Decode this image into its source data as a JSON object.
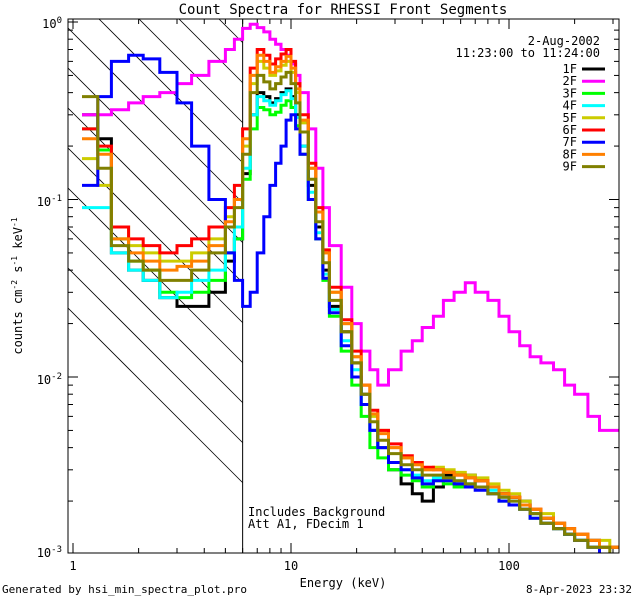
{
  "chart_data": {
    "type": "line",
    "title": "Count Spectra for RHESSI Front Segments",
    "xlabel": "Energy (keV)",
    "ylabel": "counts cm-2 s-1 keV-1",
    "ylabel_parts": {
      "a": "counts cm",
      "b": "-2",
      "c": " s",
      "d": "-1",
      "e": " keV",
      "f": "-1"
    },
    "xscale": "log",
    "yscale": "log",
    "xlim": [
      1,
      300
    ],
    "ylim": [
      0.001,
      1
    ],
    "xticks": [
      {
        "v": 1,
        "label": "1"
      },
      {
        "v": 10,
        "label": "10"
      },
      {
        "v": 100,
        "label": "100"
      }
    ],
    "yticks": [
      {
        "v": 1,
        "base": "10",
        "exp": "0"
      },
      {
        "v": 0.1,
        "base": "10",
        "exp": "-1"
      },
      {
        "v": 0.01,
        "base": "10",
        "exp": "-2"
      },
      {
        "v": 0.001,
        "base": "10",
        "exp": "-3"
      }
    ],
    "date": "2-Aug-2002",
    "time_range": "11:23:00 to 11:24:00",
    "annotation_lines": [
      "Includes Background",
      "Att A1, FDecim 1"
    ],
    "threshold_energy": 6,
    "hatched_region": [
      1,
      6
    ],
    "series": [
      {
        "name": "1F",
        "color": "#000000",
        "x": [
          1.1,
          1.3,
          1.5,
          1.8,
          2.1,
          2.5,
          3.0,
          3.5,
          4.2,
          5.0,
          5.5,
          6.0,
          6.5,
          7.0,
          7.5,
          8.0,
          8.5,
          9.0,
          9.5,
          10,
          10.5,
          11,
          12,
          13,
          14,
          15,
          17,
          19,
          21,
          23,
          25,
          28,
          32,
          36,
          40,
          45,
          50,
          56,
          63,
          70,
          80,
          90,
          100,
          112,
          125,
          140,
          160,
          180,
          200,
          230,
          260,
          290
        ],
        "y": [
          0.3,
          0.22,
          0.05,
          0.04,
          0.035,
          0.028,
          0.025,
          0.025,
          0.03,
          0.045,
          0.06,
          0.14,
          0.3,
          0.4,
          0.38,
          0.35,
          0.37,
          0.4,
          0.42,
          0.38,
          0.3,
          0.2,
          0.12,
          0.07,
          0.04,
          0.025,
          0.018,
          0.012,
          0.008,
          0.005,
          0.004,
          0.003,
          0.0025,
          0.0022,
          0.002,
          0.0024,
          0.0028,
          0.0025,
          0.0028,
          0.0026,
          0.0024,
          0.0022,
          0.0021,
          0.002,
          0.0017,
          0.0016,
          0.0014,
          0.0013,
          0.0012,
          0.0012,
          0.0011,
          0.0011
        ]
      },
      {
        "name": "2F",
        "color": "#ff00ff",
        "x": [
          1.1,
          1.3,
          1.5,
          1.8,
          2.1,
          2.5,
          3.0,
          3.5,
          4.2,
          5.0,
          5.5,
          6.0,
          6.5,
          7.0,
          7.5,
          8.0,
          8.5,
          9.0,
          9.5,
          10,
          10.5,
          11,
          12,
          13,
          14,
          15,
          17,
          19,
          21,
          23,
          25,
          28,
          32,
          36,
          40,
          45,
          50,
          56,
          63,
          70,
          80,
          90,
          100,
          112,
          125,
          140,
          160,
          180,
          200,
          230,
          260,
          290
        ],
        "y": [
          0.3,
          0.3,
          0.32,
          0.35,
          0.38,
          0.4,
          0.45,
          0.5,
          0.6,
          0.7,
          0.8,
          0.92,
          0.97,
          0.93,
          0.88,
          0.8,
          0.75,
          0.7,
          0.65,
          0.58,
          0.5,
          0.4,
          0.25,
          0.15,
          0.09,
          0.055,
          0.032,
          0.02,
          0.014,
          0.011,
          0.009,
          0.011,
          0.014,
          0.016,
          0.019,
          0.022,
          0.027,
          0.03,
          0.034,
          0.03,
          0.027,
          0.022,
          0.018,
          0.015,
          0.013,
          0.012,
          0.011,
          0.009,
          0.008,
          0.006,
          0.005,
          0.005
        ]
      },
      {
        "name": "3F",
        "color": "#00ff00",
        "x": [
          1.1,
          1.3,
          1.5,
          1.8,
          2.1,
          2.5,
          3.0,
          3.5,
          4.2,
          5.0,
          5.5,
          6.0,
          6.5,
          7.0,
          7.5,
          8.0,
          8.5,
          9.0,
          9.5,
          10,
          10.5,
          11,
          12,
          13,
          14,
          15,
          17,
          19,
          21,
          23,
          25,
          28,
          32,
          36,
          40,
          45,
          50,
          56,
          63,
          70,
          80,
          90,
          100,
          112,
          125,
          140,
          160,
          180,
          200,
          230,
          260,
          290
        ],
        "y": [
          0.25,
          0.19,
          0.06,
          0.045,
          0.04,
          0.03,
          0.028,
          0.03,
          0.035,
          0.05,
          0.06,
          0.13,
          0.25,
          0.33,
          0.32,
          0.3,
          0.31,
          0.34,
          0.36,
          0.33,
          0.26,
          0.18,
          0.1,
          0.06,
          0.035,
          0.022,
          0.014,
          0.009,
          0.006,
          0.004,
          0.0035,
          0.003,
          0.0028,
          0.0026,
          0.0024,
          0.0026,
          0.0025,
          0.0024,
          0.0025,
          0.0024,
          0.0022,
          0.002,
          0.0019,
          0.0018,
          0.0016,
          0.0015,
          0.0014,
          0.0013,
          0.0012,
          0.0011,
          0.001,
          0.001
        ]
      },
      {
        "name": "4F",
        "color": "#00ffff",
        "x": [
          1.1,
          1.3,
          1.5,
          1.8,
          2.1,
          2.5,
          3.0,
          3.5,
          4.2,
          5.0,
          5.5,
          6.0,
          6.5,
          7.0,
          7.5,
          8.0,
          8.5,
          9.0,
          9.5,
          10,
          10.5,
          11,
          12,
          13,
          14,
          15,
          17,
          19,
          21,
          23,
          25,
          28,
          32,
          36,
          40,
          45,
          50,
          56,
          63,
          70,
          80,
          90,
          100,
          112,
          125,
          140,
          160,
          180,
          200,
          230,
          260,
          290
        ],
        "y": [
          0.09,
          0.09,
          0.05,
          0.04,
          0.035,
          0.028,
          0.03,
          0.035,
          0.04,
          0.05,
          0.07,
          0.15,
          0.3,
          0.38,
          0.36,
          0.34,
          0.36,
          0.39,
          0.41,
          0.37,
          0.29,
          0.2,
          0.11,
          0.065,
          0.038,
          0.024,
          0.016,
          0.011,
          0.007,
          0.005,
          0.004,
          0.0033,
          0.003,
          0.0028,
          0.0026,
          0.0027,
          0.0027,
          0.0026,
          0.0025,
          0.0024,
          0.0023,
          0.0021,
          0.002,
          0.0019,
          0.0017,
          0.0016,
          0.0015,
          0.0013,
          0.0012,
          0.0012,
          0.0011,
          0.0011
        ]
      },
      {
        "name": "5F",
        "color": "#cccc00",
        "x": [
          1.1,
          1.3,
          1.5,
          1.8,
          2.1,
          2.5,
          3.0,
          3.5,
          4.2,
          5.0,
          5.5,
          6.0,
          6.5,
          7.0,
          7.5,
          8.0,
          8.5,
          9.0,
          9.5,
          10,
          10.5,
          11,
          12,
          13,
          14,
          15,
          17,
          19,
          21,
          23,
          25,
          28,
          32,
          36,
          40,
          45,
          50,
          56,
          63,
          70,
          80,
          90,
          100,
          112,
          125,
          140,
          160,
          180,
          200,
          230,
          260,
          290
        ],
        "y": [
          0.17,
          0.12,
          0.07,
          0.055,
          0.05,
          0.045,
          0.045,
          0.05,
          0.06,
          0.08,
          0.1,
          0.2,
          0.45,
          0.6,
          0.55,
          0.5,
          0.53,
          0.57,
          0.6,
          0.52,
          0.4,
          0.27,
          0.15,
          0.085,
          0.05,
          0.03,
          0.02,
          0.013,
          0.009,
          0.006,
          0.005,
          0.004,
          0.0035,
          0.0033,
          0.003,
          0.0031,
          0.003,
          0.0029,
          0.0028,
          0.0027,
          0.0025,
          0.0023,
          0.0022,
          0.002,
          0.0018,
          0.0017,
          0.0015,
          0.0014,
          0.0013,
          0.0012,
          0.0012,
          0.0011
        ]
      },
      {
        "name": "6F",
        "color": "#ff0000",
        "x": [
          1.1,
          1.3,
          1.5,
          1.8,
          2.1,
          2.5,
          3.0,
          3.5,
          4.2,
          5.0,
          5.5,
          6.0,
          6.5,
          7.0,
          7.5,
          8.0,
          8.5,
          9.0,
          9.5,
          10,
          10.5,
          11,
          12,
          13,
          14,
          15,
          17,
          19,
          21,
          23,
          25,
          28,
          32,
          36,
          40,
          45,
          50,
          56,
          63,
          70,
          80,
          90,
          100,
          112,
          125,
          140,
          160,
          180,
          200,
          230,
          260,
          290
        ],
        "y": [
          0.25,
          0.2,
          0.07,
          0.06,
          0.055,
          0.05,
          0.055,
          0.06,
          0.07,
          0.09,
          0.12,
          0.25,
          0.55,
          0.7,
          0.65,
          0.58,
          0.62,
          0.66,
          0.7,
          0.6,
          0.45,
          0.3,
          0.16,
          0.09,
          0.052,
          0.032,
          0.021,
          0.014,
          0.009,
          0.0065,
          0.005,
          0.0042,
          0.0036,
          0.0033,
          0.0031,
          0.003,
          0.0029,
          0.0028,
          0.0027,
          0.0026,
          0.0024,
          0.0022,
          0.0021,
          0.0019,
          0.0018,
          0.0016,
          0.0015,
          0.0014,
          0.0013,
          0.0012,
          0.0011,
          0.0011
        ]
      },
      {
        "name": "7F",
        "color": "#0000ff",
        "x": [
          1.1,
          1.3,
          1.5,
          1.8,
          2.1,
          2.5,
          3.0,
          3.5,
          4.2,
          5.0,
          5.5,
          6.0,
          6.5,
          7.0,
          7.5,
          8.0,
          8.5,
          9.0,
          9.5,
          10,
          10.5,
          11,
          12,
          13,
          14,
          15,
          17,
          19,
          21,
          23,
          25,
          28,
          32,
          36,
          40,
          45,
          50,
          56,
          63,
          70,
          80,
          90,
          100,
          112,
          125,
          140,
          160,
          180,
          200,
          230,
          260,
          290
        ],
        "y": [
          0.12,
          0.38,
          0.6,
          0.65,
          0.62,
          0.52,
          0.35,
          0.2,
          0.1,
          0.05,
          0.035,
          0.025,
          0.03,
          0.05,
          0.08,
          0.12,
          0.16,
          0.2,
          0.28,
          0.3,
          0.25,
          0.18,
          0.1,
          0.06,
          0.036,
          0.023,
          0.015,
          0.01,
          0.007,
          0.005,
          0.004,
          0.0033,
          0.003,
          0.0027,
          0.0025,
          0.0026,
          0.0026,
          0.0025,
          0.0024,
          0.0023,
          0.0022,
          0.002,
          0.0019,
          0.0018,
          0.0016,
          0.0015,
          0.0014,
          0.0013,
          0.0012,
          0.0011,
          0.001,
          0.001
        ]
      },
      {
        "name": "8F",
        "color": "#ff8000",
        "x": [
          1.1,
          1.3,
          1.5,
          1.8,
          2.1,
          2.5,
          3.0,
          3.5,
          4.2,
          5.0,
          5.5,
          6.0,
          6.5,
          7.0,
          7.5,
          8.0,
          8.5,
          9.0,
          9.5,
          10,
          10.5,
          11,
          12,
          13,
          14,
          15,
          17,
          19,
          21,
          23,
          25,
          28,
          32,
          36,
          40,
          45,
          50,
          56,
          63,
          70,
          80,
          90,
          100,
          112,
          125,
          140,
          160,
          180,
          200,
          230,
          260,
          290
        ],
        "y": [
          0.22,
          0.18,
          0.06,
          0.05,
          0.045,
          0.04,
          0.042,
          0.045,
          0.055,
          0.075,
          0.1,
          0.22,
          0.5,
          0.65,
          0.6,
          0.52,
          0.56,
          0.6,
          0.64,
          0.55,
          0.42,
          0.28,
          0.15,
          0.085,
          0.05,
          0.03,
          0.02,
          0.013,
          0.009,
          0.0062,
          0.0048,
          0.004,
          0.0035,
          0.0032,
          0.003,
          0.003,
          0.0029,
          0.0028,
          0.0027,
          0.0026,
          0.0024,
          0.0022,
          0.0021,
          0.0019,
          0.0018,
          0.0016,
          0.0015,
          0.0014,
          0.0013,
          0.0012,
          0.0011,
          0.0011
        ]
      },
      {
        "name": "9F",
        "color": "#808000",
        "x": [
          1.1,
          1.3,
          1.5,
          1.8,
          2.1,
          2.5,
          3.0,
          3.5,
          4.2,
          5.0,
          5.5,
          6.0,
          6.5,
          7.0,
          7.5,
          8.0,
          8.5,
          9.0,
          9.5,
          10,
          10.5,
          11,
          12,
          13,
          14,
          15,
          17,
          19,
          21,
          23,
          25,
          28,
          32,
          36,
          40,
          45,
          50,
          56,
          63,
          70,
          80,
          90,
          100,
          112,
          125,
          140,
          160,
          180,
          200,
          230,
          260,
          290
        ],
        "y": [
          0.38,
          0.15,
          0.055,
          0.045,
          0.04,
          0.035,
          0.035,
          0.04,
          0.05,
          0.07,
          0.09,
          0.18,
          0.4,
          0.5,
          0.46,
          0.42,
          0.45,
          0.49,
          0.52,
          0.45,
          0.35,
          0.24,
          0.13,
          0.075,
          0.044,
          0.027,
          0.018,
          0.012,
          0.008,
          0.0056,
          0.0044,
          0.0037,
          0.0032,
          0.003,
          0.0028,
          0.0028,
          0.0027,
          0.0026,
          0.0025,
          0.0024,
          0.0022,
          0.0021,
          0.002,
          0.0018,
          0.0017,
          0.0015,
          0.0014,
          0.0013,
          0.0012,
          0.0011,
          0.0011,
          0.001
        ]
      }
    ]
  },
  "footer": {
    "left": "Generated by hsi_min_spectra_plot.pro",
    "right": "8-Apr-2023 23:32"
  }
}
